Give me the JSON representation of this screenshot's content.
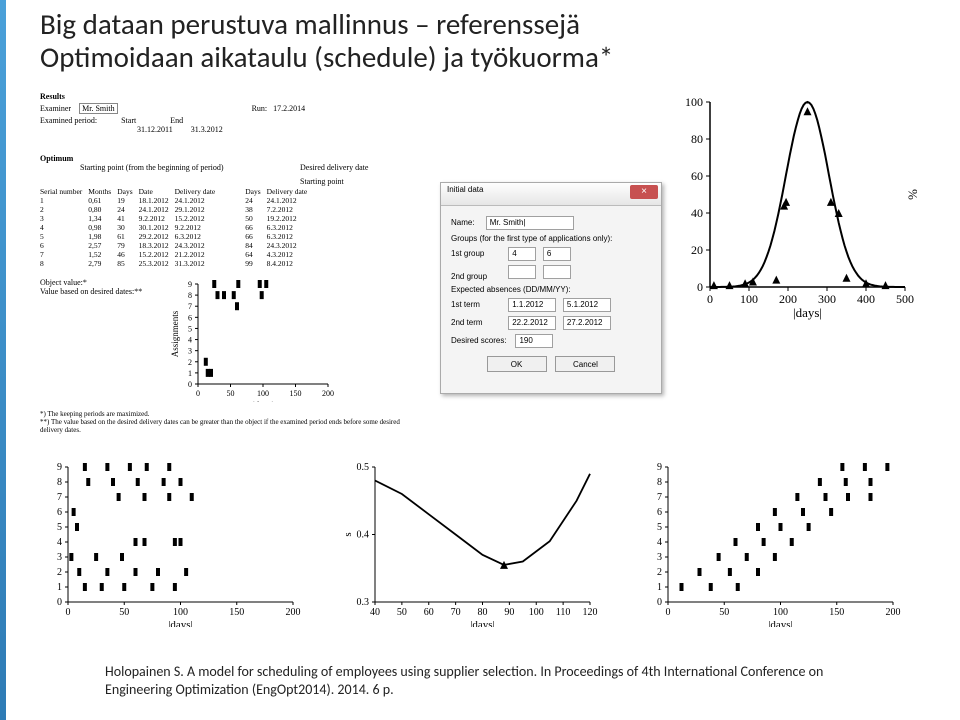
{
  "title": {
    "line1": "Big dataan perustuva mallinnus – referenssejä",
    "line2": "Optimoidaan aikataulu (schedule) ja työkuorma*"
  },
  "citation": "Holopainen S. A model for scheduling of employees using supplier selection. In Proceedings of 4th International Conference on Engineering Optimization (EngOpt2014). 2014. 6 p.",
  "results": {
    "heading": "Results",
    "examiner_label": "Examiner",
    "examiner_value": "Mr. Smith",
    "run_label": "Run:",
    "run_value": "17.2.2014",
    "period_label": "Examined period:",
    "start_hdr": "Start",
    "end_hdr": "End",
    "start": "31.12.2011",
    "end": "31.3.2012"
  },
  "optimum": {
    "heading": "Optimum",
    "left_caption": "Starting point (from the beginning of period)",
    "right_caption": "Desired delivery date",
    "right_sub": "Starting point",
    "cols_left": [
      "Serial number",
      "Months",
      "Days",
      "Date",
      "Delivery date"
    ],
    "cols_right": [
      "Days",
      "Delivery date"
    ],
    "rows": [
      {
        "sn": 1,
        "m": "0,61",
        "d": 19,
        "date": "18.1.2012",
        "deliv": "24.1.2012",
        "rd": 24,
        "rdeliv": "24.1.2012"
      },
      {
        "sn": 2,
        "m": "0,80",
        "d": 24,
        "date": "24.1.2012",
        "deliv": "29.1.2012",
        "rd": 38,
        "rdeliv": "7.2.2012"
      },
      {
        "sn": 3,
        "m": "1,34",
        "d": 41,
        "date": "9.2.2012",
        "deliv": "15.2.2012",
        "rd": 50,
        "rdeliv": "19.2.2012"
      },
      {
        "sn": 4,
        "m": "0,98",
        "d": 30,
        "date": "30.1.2012",
        "deliv": "9.2.2012",
        "rd": 66,
        "rdeliv": "6.3.2012"
      },
      {
        "sn": 5,
        "m": "1,98",
        "d": 61,
        "date": "29.2.2012",
        "deliv": "6.3.2012",
        "rd": 66,
        "rdeliv": "6.3.2012"
      },
      {
        "sn": 6,
        "m": "2,57",
        "d": 79,
        "date": "18.3.2012",
        "deliv": "24.3.2012",
        "rd": 84,
        "rdeliv": "24.3.2012"
      },
      {
        "sn": 7,
        "m": "1,52",
        "d": 46,
        "date": "15.2.2012",
        "deliv": "21.2.2012",
        "rd": 64,
        "rdeliv": "4.3.2012"
      },
      {
        "sn": 8,
        "m": "2,79",
        "d": 85,
        "date": "25.3.2012",
        "deliv": "31.3.2012",
        "rd": 99,
        "rdeliv": "8.4.2012"
      }
    ],
    "obj_label1": "Object value:*",
    "obj_label2": "Value based on desired dates:**",
    "footnote1": "*) The keeping periods are maximized.",
    "footnote2": "**) The value based on the desired delivery dates can be greater than the object if the examined period ends before some desired delivery dates."
  },
  "dialog": {
    "title": "Initial data",
    "close": "×",
    "name_label": "Name:",
    "name_value": "Mr. Smith|",
    "groups_label": "Groups (for the first type of applications only):",
    "g1_label": "1st group",
    "g1a": "4",
    "g1b": "6",
    "g2_label": "2nd group",
    "abs_label": "Expected absences (DD/MM/YY):",
    "t1_label": "1st term",
    "t1a": "1.1.2012",
    "t1b": "5.1.2012",
    "t2_label": "2nd term",
    "t2a": "22.2.2012",
    "t2b": "27.2.2012",
    "score_label": "Desired scores:",
    "score_val": "190",
    "ok": "OK",
    "cancel": "Cancel"
  },
  "small_assign": {
    "type": "scatter",
    "ylabel": "Assignments",
    "xlabel": "|days|",
    "yticks": [
      0,
      1,
      2,
      3,
      4,
      5,
      6,
      7,
      8,
      9
    ],
    "xticks": [
      0,
      50,
      100,
      150,
      200
    ],
    "points": [
      [
        25,
        9
      ],
      [
        30,
        8
      ],
      [
        40,
        8
      ],
      [
        55,
        8
      ],
      [
        60,
        7
      ],
      [
        62,
        9
      ],
      [
        95,
        9
      ],
      [
        105,
        9
      ],
      [
        98,
        8
      ],
      [
        12,
        2
      ],
      [
        15,
        1
      ],
      [
        20,
        1
      ]
    ]
  },
  "bell": {
    "type": "line",
    "ylabel": "%",
    "xlabel": "|days|",
    "yticks": [
      0,
      20,
      40,
      60,
      80,
      100
    ],
    "xticks": [
      0,
      100,
      200,
      300,
      400,
      500
    ],
    "markers": [
      [
        10,
        1
      ],
      [
        50,
        1
      ],
      [
        90,
        2
      ],
      [
        110,
        3
      ],
      [
        170,
        4
      ],
      [
        190,
        44
      ],
      [
        195,
        46
      ],
      [
        250,
        95
      ],
      [
        310,
        46
      ],
      [
        330,
        40
      ],
      [
        350,
        5
      ],
      [
        400,
        2
      ],
      [
        450,
        1
      ]
    ],
    "curve_peak_x": 250,
    "curve_peak_y": 100,
    "curve_sigma": 55
  },
  "bottom_left": {
    "type": "scatter",
    "xlabel": "|days|",
    "yticks": [
      0,
      1,
      2,
      3,
      4,
      5,
      6,
      7,
      8,
      9
    ],
    "xticks": [
      0,
      50,
      100,
      150,
      200
    ],
    "points": [
      [
        15,
        9
      ],
      [
        35,
        9
      ],
      [
        55,
        9
      ],
      [
        70,
        9
      ],
      [
        90,
        9
      ],
      [
        18,
        8
      ],
      [
        40,
        8
      ],
      [
        62,
        8
      ],
      [
        85,
        8
      ],
      [
        100,
        8
      ],
      [
        45,
        7
      ],
      [
        68,
        7
      ],
      [
        90,
        7
      ],
      [
        110,
        7
      ],
      [
        5,
        6
      ],
      [
        8,
        5
      ],
      [
        60,
        4
      ],
      [
        68,
        4
      ],
      [
        95,
        4
      ],
      [
        100,
        4
      ],
      [
        3,
        3
      ],
      [
        25,
        3
      ],
      [
        48,
        3
      ],
      [
        10,
        2
      ],
      [
        35,
        2
      ],
      [
        60,
        2
      ],
      [
        80,
        2
      ],
      [
        105,
        2
      ],
      [
        15,
        1
      ],
      [
        30,
        1
      ],
      [
        50,
        1
      ],
      [
        75,
        1
      ],
      [
        95,
        1
      ]
    ]
  },
  "bottom_mid": {
    "type": "line",
    "xlabel": "|days|",
    "ylabel": "s",
    "yticks": [
      0.3,
      0.4,
      0.5
    ],
    "xticks": [
      40,
      50,
      60,
      70,
      80,
      90,
      100,
      110,
      120
    ],
    "curve": [
      [
        40,
        0.48
      ],
      [
        50,
        0.46
      ],
      [
        60,
        0.43
      ],
      [
        70,
        0.4
      ],
      [
        80,
        0.37
      ],
      [
        88,
        0.355
      ],
      [
        95,
        0.36
      ],
      [
        105,
        0.39
      ],
      [
        115,
        0.45
      ],
      [
        120,
        0.49
      ]
    ],
    "marker": [
      88,
      0.355
    ]
  },
  "bottom_right": {
    "type": "scatter",
    "xlabel": "|days|",
    "yticks": [
      0,
      1,
      2,
      3,
      4,
      5,
      6,
      7,
      8,
      9
    ],
    "xticks": [
      0,
      50,
      100,
      150,
      200
    ],
    "points": [
      [
        155,
        9
      ],
      [
        175,
        9
      ],
      [
        195,
        9
      ],
      [
        135,
        8
      ],
      [
        158,
        8
      ],
      [
        180,
        8
      ],
      [
        115,
        7
      ],
      [
        140,
        7
      ],
      [
        160,
        7
      ],
      [
        180,
        7
      ],
      [
        95,
        6
      ],
      [
        120,
        6
      ],
      [
        145,
        6
      ],
      [
        80,
        5
      ],
      [
        100,
        5
      ],
      [
        125,
        5
      ],
      [
        60,
        4
      ],
      [
        85,
        4
      ],
      [
        110,
        4
      ],
      [
        45,
        3
      ],
      [
        70,
        3
      ],
      [
        95,
        3
      ],
      [
        28,
        2
      ],
      [
        55,
        2
      ],
      [
        80,
        2
      ],
      [
        12,
        1
      ],
      [
        38,
        1
      ],
      [
        62,
        1
      ]
    ]
  },
  "colors": {
    "accent": "#2e7bb5",
    "text": "#222222",
    "axis": "#000000",
    "marker": "#000000",
    "dialog_bg": "#f4f4f4",
    "close_btn": "#c75050"
  },
  "fonts": {
    "title_size": 29,
    "body_size": 8,
    "cite_size": 14
  }
}
